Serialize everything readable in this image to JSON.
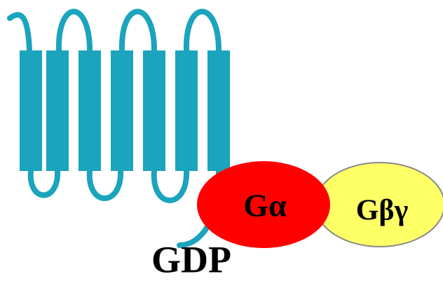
{
  "nodes": [
    {
      "label": "Gα"
    },
    {
      "label": "Gβγ"
    },
    {
      "label": "GDP"
    }
  ]
}
